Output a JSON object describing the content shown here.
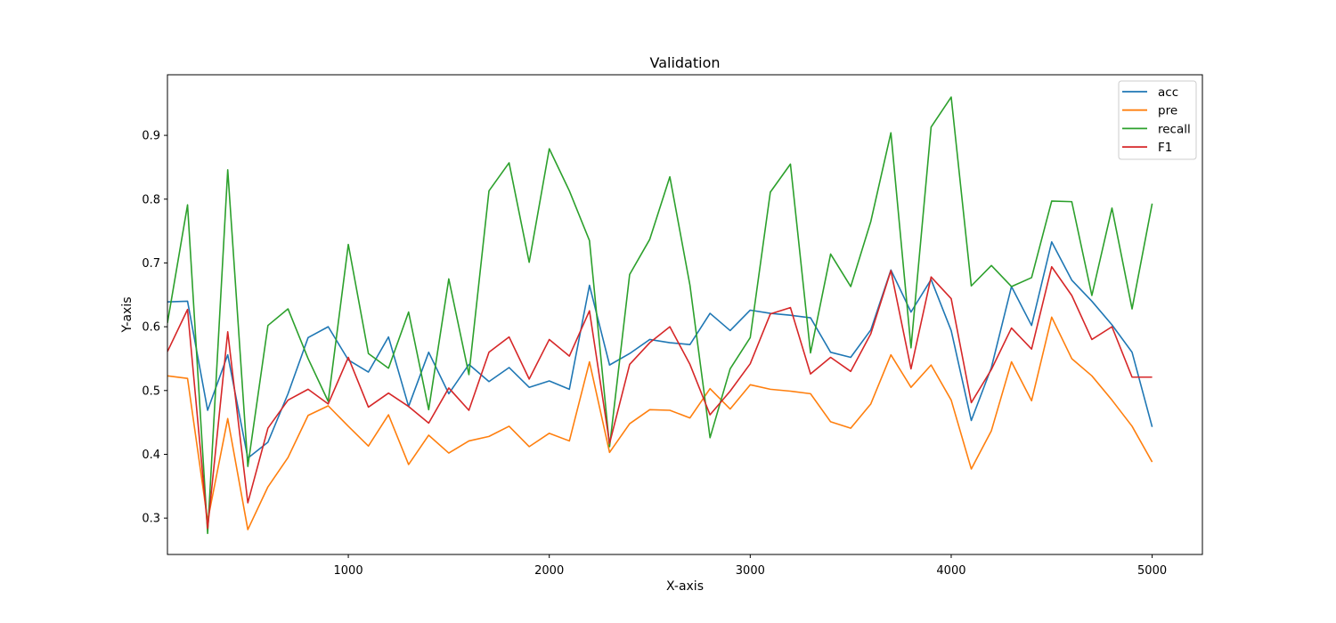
{
  "chart_data": {
    "type": "line",
    "title": "Validation",
    "xlabel": "X-axis",
    "ylabel": "Y-axis",
    "xlim": [
      100,
      5250
    ],
    "ylim": [
      0.243,
      0.995
    ],
    "xticks": [
      1000,
      2000,
      3000,
      4000,
      5000
    ],
    "yticks": [
      0.3,
      0.4,
      0.5,
      0.6,
      0.7,
      0.8,
      0.9
    ],
    "grid": false,
    "legend_position": "top-right",
    "x": [
      100,
      200,
      300,
      400,
      500,
      600,
      700,
      800,
      900,
      1000,
      1100,
      1200,
      1300,
      1400,
      1500,
      1600,
      1700,
      1800,
      1900,
      2000,
      2100,
      2200,
      2300,
      2400,
      2500,
      2600,
      2700,
      2800,
      2900,
      3000,
      3100,
      3200,
      3300,
      3400,
      3500,
      3600,
      3700,
      3800,
      3900,
      4000,
      4100,
      4200,
      4300,
      4400,
      4500,
      4600,
      4700,
      4800,
      4900,
      5000
    ],
    "series": [
      {
        "name": "acc",
        "color": "#1f77b4",
        "values": [
          0.639,
          0.64,
          0.469,
          0.556,
          0.394,
          0.419,
          0.495,
          0.583,
          0.6,
          0.548,
          0.529,
          0.584,
          0.475,
          0.56,
          0.495,
          0.541,
          0.514,
          0.536,
          0.505,
          0.515,
          0.502,
          0.665,
          0.54,
          0.558,
          0.58,
          0.575,
          0.572,
          0.621,
          0.594,
          0.626,
          0.621,
          0.618,
          0.614,
          0.56,
          0.552,
          0.595,
          0.689,
          0.623,
          0.674,
          0.594,
          0.453,
          0.536,
          0.663,
          0.602,
          0.733,
          0.673,
          0.64,
          0.603,
          0.56,
          0.443
        ]
      },
      {
        "name": "pre",
        "color": "#ff7f0e",
        "values": [
          0.523,
          0.519,
          0.296,
          0.456,
          0.282,
          0.349,
          0.395,
          0.461,
          0.476,
          0.444,
          0.413,
          0.462,
          0.384,
          0.43,
          0.402,
          0.421,
          0.428,
          0.444,
          0.412,
          0.433,
          0.421,
          0.545,
          0.403,
          0.448,
          0.47,
          0.469,
          0.457,
          0.503,
          0.471,
          0.509,
          0.502,
          0.499,
          0.495,
          0.451,
          0.441,
          0.479,
          0.556,
          0.505,
          0.54,
          0.485,
          0.377,
          0.437,
          0.545,
          0.484,
          0.615,
          0.55,
          0.523,
          0.485,
          0.444,
          0.388
        ]
      },
      {
        "name": "recall",
        "color": "#2ca02c",
        "values": [
          0.606,
          0.791,
          0.276,
          0.846,
          0.381,
          0.602,
          0.628,
          0.55,
          0.483,
          0.729,
          0.558,
          0.535,
          0.623,
          0.47,
          0.675,
          0.525,
          0.813,
          0.857,
          0.701,
          0.879,
          0.813,
          0.735,
          0.412,
          0.682,
          0.737,
          0.835,
          0.665,
          0.426,
          0.534,
          0.583,
          0.811,
          0.855,
          0.559,
          0.714,
          0.663,
          0.765,
          0.904,
          0.567,
          0.913,
          0.96,
          0.664,
          0.696,
          0.663,
          0.677,
          0.797,
          0.796,
          0.649,
          0.786,
          0.628,
          0.793
        ]
      },
      {
        "name": "F1",
        "color": "#d62728",
        "values": [
          0.561,
          0.627,
          0.284,
          0.592,
          0.324,
          0.441,
          0.485,
          0.502,
          0.479,
          0.552,
          0.474,
          0.496,
          0.475,
          0.449,
          0.504,
          0.469,
          0.56,
          0.584,
          0.518,
          0.58,
          0.554,
          0.625,
          0.417,
          0.541,
          0.575,
          0.6,
          0.541,
          0.462,
          0.499,
          0.542,
          0.62,
          0.63,
          0.526,
          0.552,
          0.53,
          0.589,
          0.688,
          0.534,
          0.678,
          0.644,
          0.481,
          0.533,
          0.598,
          0.565,
          0.694,
          0.649,
          0.58,
          0.6,
          0.521,
          0.521
        ]
      }
    ]
  }
}
